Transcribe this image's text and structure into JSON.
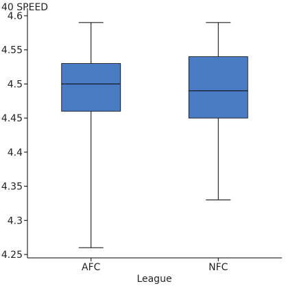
{
  "chart_data": {
    "type": "box",
    "ylabel": "40 SPEED",
    "xlabel": "League",
    "ylim": [
      4.245,
      4.605
    ],
    "yticks": [
      4.25,
      4.3,
      4.35,
      4.4,
      4.45,
      4.5,
      4.55,
      4.6
    ],
    "ytick_labels": [
      "4.25",
      "4.3",
      "4.35",
      "4.4",
      "4.45",
      "4.5",
      "4.55",
      "4.6"
    ],
    "grid": false,
    "box_color": "#4a7cc3",
    "categories": [
      "AFC",
      "NFC"
    ],
    "boxes": [
      {
        "category": "AFC",
        "min": 4.26,
        "q1": 4.46,
        "median": 4.5,
        "q3": 4.53,
        "max": 4.59
      },
      {
        "category": "NFC",
        "min": 4.33,
        "q1": 4.45,
        "median": 4.49,
        "q3": 4.54,
        "max": 4.59
      }
    ]
  }
}
